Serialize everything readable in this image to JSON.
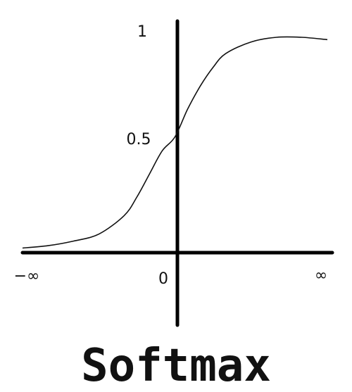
{
  "chart_data": {
    "type": "line",
    "title": "Softmax",
    "xlabel": "",
    "ylabel": "",
    "x_ticks": [
      "−∞",
      "0",
      "∞"
    ],
    "y_ticks": [
      "1",
      "0.5"
    ],
    "xlim": [
      -6,
      6
    ],
    "ylim": [
      0,
      1
    ],
    "grid": false,
    "series": [
      {
        "x": [
          -6,
          -5,
          -4,
          -3,
          -2,
          -1.5,
          -1,
          -0.5,
          0,
          0.5,
          1,
          1.5,
          2,
          3,
          4,
          5,
          6
        ],
        "y": [
          0.02,
          0.03,
          0.05,
          0.08,
          0.16,
          0.24,
          0.34,
          0.44,
          0.5,
          0.62,
          0.72,
          0.8,
          0.86,
          0.91,
          0.93,
          0.93,
          0.92
        ]
      }
    ],
    "colors": {
      "axis": "#000000",
      "curve": "#111111",
      "text": "#111111"
    }
  }
}
